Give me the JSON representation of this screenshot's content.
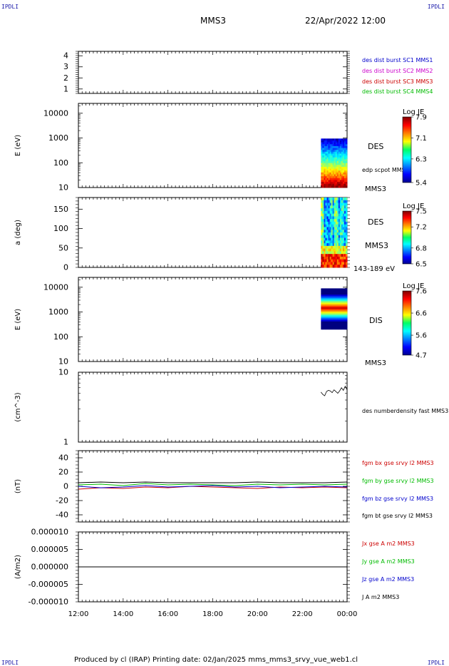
{
  "corner_label": "IPDLI",
  "header": {
    "spacecraft": "MMS3",
    "datetime": "22/Apr/2022 12:00"
  },
  "footer": "Produced by cl (IRAP)   Printing date: 02/Jan/2025   mms_mms3_srvy_vue_web1.cl",
  "colors": {
    "mms1": "#0000cc",
    "mms2": "#cc00cc",
    "mms3": "#cc0000",
    "mms4": "#00bb00",
    "bt": "#000000"
  },
  "chart_data": [
    {
      "type": "line",
      "id": "sc_timeline",
      "yticks": [
        "1",
        "2",
        "3",
        "4"
      ],
      "ylim": [
        0.6,
        4.4
      ],
      "legend": [
        {
          "name": "des dist burst SC1 MMS1",
          "color": "#0000cc"
        },
        {
          "name": "des dist burst SC2 MMS2",
          "color": "#cc00cc"
        },
        {
          "name": "des dist burst SC3 MMS3",
          "color": "#cc0000"
        },
        {
          "name": "des dist burst SC4 MMS4",
          "color": "#00bb00"
        }
      ]
    },
    {
      "type": "heatmap",
      "id": "des_energy",
      "ylabel": "E (eV)",
      "scale": "log",
      "yticks": [
        "10",
        "100",
        "1000",
        "10000"
      ],
      "ylim": [
        10,
        25000
      ],
      "label": "DES",
      "label2": "edp scpot MMS3",
      "label3": "MMS3",
      "colorbar": {
        "title": "Log JE",
        "ticks": [
          "5.4",
          "6.3",
          "7.1",
          "7.9"
        ],
        "range": [
          5.4,
          7.9
        ]
      },
      "data_range": [
        "22:50",
        "00:00"
      ]
    },
    {
      "type": "heatmap",
      "id": "des_pitch",
      "ylabel": "a (deg)",
      "yticks": [
        "0",
        "50",
        "100",
        "150"
      ],
      "ylim": [
        0,
        180
      ],
      "label": "DES",
      "label2": "MMS3",
      "label3": "143-189 eV",
      "colorbar": {
        "title": "Log JE",
        "ticks": [
          "6.5",
          "6.8",
          "7.2",
          "7.5"
        ],
        "range": [
          6.5,
          7.5
        ]
      },
      "data_range": [
        "22:50",
        "00:00"
      ]
    },
    {
      "type": "heatmap",
      "id": "dis_energy",
      "ylabel": "E (eV)",
      "scale": "log",
      "yticks": [
        "10",
        "100",
        "1000",
        "10000"
      ],
      "ylim": [
        10,
        25000
      ],
      "label": "DIS",
      "label2": "MMS3",
      "colorbar": {
        "title": "Log JE",
        "ticks": [
          "4.7",
          "5.6",
          "6.6",
          "7.6"
        ],
        "range": [
          4.7,
          7.6
        ]
      },
      "data_range": [
        "22:50",
        "00:00"
      ]
    },
    {
      "type": "line",
      "id": "density",
      "ylabel": "(cm^-3)",
      "scale": "log",
      "yticks": [
        "1",
        "10"
      ],
      "ylim": [
        1,
        10
      ],
      "legend": [
        {
          "name": "des numberdensity fast MMS3",
          "color": "#000000"
        }
      ],
      "x": [
        "22:50",
        "22:55",
        "23:00",
        "23:05",
        "23:10",
        "23:15",
        "23:20",
        "23:25",
        "23:30",
        "23:35",
        "23:40",
        "23:45",
        "23:50",
        "23:55",
        "00:00"
      ],
      "values": [
        5.2,
        4.8,
        4.6,
        5.3,
        5.5,
        5.4,
        5.1,
        5.6,
        5.3,
        5.0,
        5.4,
        6.0,
        5.5,
        6.3,
        5.6
      ]
    },
    {
      "type": "line",
      "id": "bfield",
      "ylabel": "(nT)",
      "yticks": [
        "-40",
        "-20",
        "0",
        "20",
        "40"
      ],
      "ylim": [
        -50,
        50
      ],
      "legend": [
        {
          "name": "fgm bx gse srvy l2 MMS3",
          "color": "#cc0000"
        },
        {
          "name": "fgm by gse srvy l2 MMS3",
          "color": "#00bb00"
        },
        {
          "name": "fgm bz gse srvy l2 MMS3",
          "color": "#0000cc"
        },
        {
          "name": "fgm bt gse srvy l2 MMS3",
          "color": "#000000"
        }
      ],
      "x": [
        "12:00",
        "13:00",
        "14:00",
        "15:00",
        "16:00",
        "17:00",
        "18:00",
        "19:00",
        "20:00",
        "21:00",
        "22:00",
        "23:00",
        "00:00"
      ],
      "series": [
        {
          "name": "fgm bx gse srvy l2 MMS3",
          "values": [
            -4,
            -2,
            -3,
            -1,
            -2,
            0,
            -1,
            -2,
            -3,
            -1,
            -2,
            -1,
            -2
          ]
        },
        {
          "name": "fgm by gse srvy l2 MMS3",
          "values": [
            2,
            3,
            1,
            4,
            2,
            3,
            2,
            1,
            3,
            2,
            3,
            2,
            3
          ]
        },
        {
          "name": "fgm bz gse srvy l2 MMS3",
          "values": [
            0,
            -2,
            -1,
            1,
            -1,
            0,
            1,
            -1,
            0,
            -2,
            -1,
            0,
            -1
          ]
        },
        {
          "name": "fgm bt gse srvy l2 MMS3",
          "values": [
            5,
            6,
            5,
            6,
            5,
            5,
            5,
            5,
            6,
            5,
            5,
            5,
            6
          ]
        }
      ]
    },
    {
      "type": "line",
      "id": "current",
      "ylabel": "(A/m2)",
      "yticks": [
        "-0.000010",
        "-0.000005",
        "0.000000",
        "0.000005",
        "0.000010"
      ],
      "ylim": [
        -1e-05,
        1e-05
      ],
      "legend": [
        {
          "name": "Jx gse A m2 MMS3",
          "color": "#cc0000"
        },
        {
          "name": "Jy gse A m2 MMS3",
          "color": "#00bb00"
        },
        {
          "name": "Jz gse A m2 MMS3",
          "color": "#0000cc"
        },
        {
          "name": "J A m2 MMS3",
          "color": "#000000"
        }
      ],
      "x": [
        "12:00",
        "00:00"
      ],
      "values": [
        0,
        0
      ]
    }
  ],
  "xaxis": {
    "ticks": [
      "12:00",
      "14:00",
      "16:00",
      "18:00",
      "20:00",
      "22:00",
      "00:00"
    ]
  }
}
